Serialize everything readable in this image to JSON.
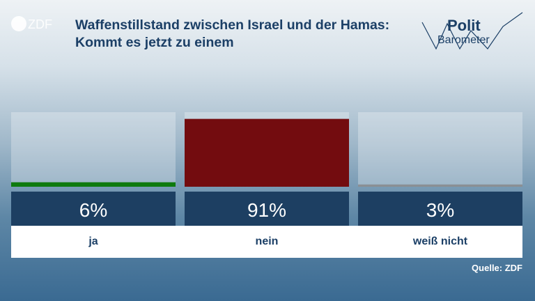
{
  "title": "Waffenstillstand zwischen Israel und der Hamas: Kommt es jetzt zu einem",
  "logo": {
    "broadcaster": "ZDF",
    "brand_line1": "Polit",
    "brand_line2": "Barometer"
  },
  "source": "Quelle: ZDF",
  "colors": {
    "ja": "#0e7a0e",
    "nein": "#730c0f",
    "weiss_nicht": "#8a8f94",
    "value_box": "#1d3f62",
    "title": "#1b3f66"
  },
  "chart_data": {
    "type": "bar",
    "categories": [
      "ja",
      "nein",
      "weiß nicht"
    ],
    "values": [
      6,
      91,
      3
    ],
    "value_labels": [
      "6%",
      "91%",
      "3%"
    ],
    "unit": "%",
    "ylim": [
      0,
      100
    ],
    "colors": [
      "#0e7a0e",
      "#730c0f",
      "#8a8f94"
    ]
  }
}
